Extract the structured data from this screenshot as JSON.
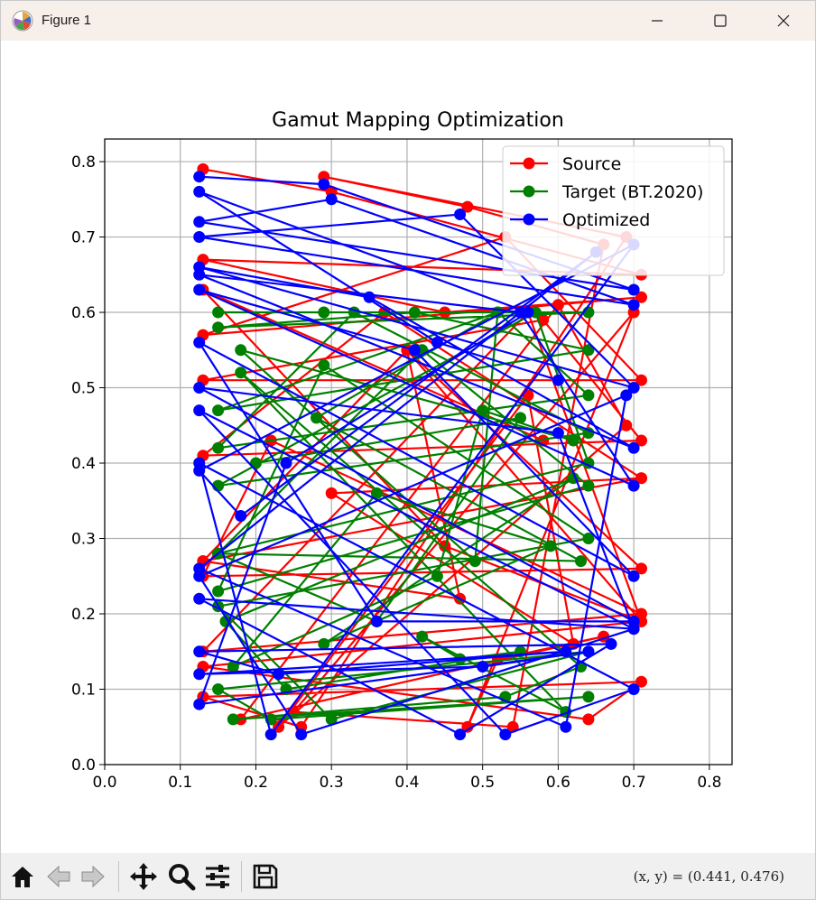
{
  "window": {
    "title": "Figure 1"
  },
  "toolbar": {
    "buttons": [
      "home-icon",
      "back-icon",
      "forward-icon",
      "pan-icon",
      "zoom-icon",
      "configure-icon",
      "save-icon"
    ],
    "coords_readout": "(x, y) = (0.441, 0.476)"
  },
  "colors": {
    "source": "#ff0000",
    "target": "#008000",
    "optimized": "#0000ff",
    "grid": "#b0b0b0",
    "titlebar": "#f7efea",
    "toolbar": "#f0f0f0"
  },
  "chart_data": {
    "type": "line",
    "title": "Gamut Mapping Optimization",
    "xlabel": "",
    "ylabel": "",
    "xlim": [
      0.0,
      0.83
    ],
    "ylim": [
      0.0,
      0.83
    ],
    "xticks": [
      "0.0",
      "0.1",
      "0.2",
      "0.3",
      "0.4",
      "0.5",
      "0.6",
      "0.7",
      "0.8"
    ],
    "yticks": [
      "0.0",
      "0.1",
      "0.2",
      "0.3",
      "0.4",
      "0.5",
      "0.6",
      "0.7",
      "0.8"
    ],
    "grid": true,
    "legend_position": "top-right",
    "series": [
      {
        "name": "Source",
        "color": "#ff0000",
        "points": [
          [
            0.13,
            0.79
          ],
          [
            0.3,
            0.76
          ],
          [
            0.71,
            0.65
          ],
          [
            0.13,
            0.67
          ],
          [
            0.45,
            0.6
          ],
          [
            0.71,
            0.62
          ],
          [
            0.13,
            0.57
          ],
          [
            0.53,
            0.7
          ],
          [
            0.71,
            0.51
          ],
          [
            0.13,
            0.51
          ],
          [
            0.58,
            0.59
          ],
          [
            0.71,
            0.43
          ],
          [
            0.13,
            0.41
          ],
          [
            0.37,
            0.6
          ],
          [
            0.71,
            0.38
          ],
          [
            0.13,
            0.27
          ],
          [
            0.4,
            0.55
          ],
          [
            0.71,
            0.26
          ],
          [
            0.13,
            0.25
          ],
          [
            0.22,
            0.43
          ],
          [
            0.71,
            0.2
          ],
          [
            0.13,
            0.15
          ],
          [
            0.56,
            0.6
          ],
          [
            0.71,
            0.19
          ],
          [
            0.13,
            0.13
          ],
          [
            0.64,
            0.06
          ],
          [
            0.71,
            0.11
          ],
          [
            0.13,
            0.09
          ],
          [
            0.26,
            0.05
          ],
          [
            0.69,
            0.7
          ],
          [
            0.29,
            0.78
          ],
          [
            0.48,
            0.74
          ],
          [
            0.66,
            0.69
          ],
          [
            0.54,
            0.05
          ],
          [
            0.25,
            0.07
          ],
          [
            0.7,
            0.6
          ],
          [
            0.48,
            0.05
          ],
          [
            0.52,
            0.14
          ],
          [
            0.66,
            0.17
          ],
          [
            0.18,
            0.06
          ],
          [
            0.6,
            0.61
          ],
          [
            0.69,
            0.45
          ],
          [
            0.23,
            0.05
          ],
          [
            0.56,
            0.49
          ],
          [
            0.62,
            0.16
          ],
          [
            0.3,
            0.36
          ],
          [
            0.71,
            0.38
          ],
          [
            0.13,
            0.27
          ],
          [
            0.47,
            0.22
          ],
          [
            0.4,
            0.55
          ],
          [
            0.71,
            0.19
          ],
          [
            0.45,
            0.29
          ],
          [
            0.13,
            0.63
          ],
          [
            0.58,
            0.43
          ]
        ]
      },
      {
        "name": "Target (BT.2020)",
        "color": "#008000",
        "points": [
          [
            0.15,
            0.6
          ],
          [
            0.29,
            0.6
          ],
          [
            0.64,
            0.6
          ],
          [
            0.15,
            0.58
          ],
          [
            0.41,
            0.6
          ],
          [
            0.64,
            0.55
          ],
          [
            0.15,
            0.47
          ],
          [
            0.52,
            0.6
          ],
          [
            0.64,
            0.49
          ],
          [
            0.15,
            0.42
          ],
          [
            0.33,
            0.6
          ],
          [
            0.64,
            0.44
          ],
          [
            0.15,
            0.37
          ],
          [
            0.57,
            0.6
          ],
          [
            0.64,
            0.4
          ],
          [
            0.15,
            0.28
          ],
          [
            0.42,
            0.55
          ],
          [
            0.64,
            0.37
          ],
          [
            0.15,
            0.23
          ],
          [
            0.29,
            0.53
          ],
          [
            0.64,
            0.3
          ],
          [
            0.15,
            0.21
          ],
          [
            0.3,
            0.06
          ],
          [
            0.64,
            0.15
          ],
          [
            0.15,
            0.1
          ],
          [
            0.22,
            0.06
          ],
          [
            0.64,
            0.09
          ],
          [
            0.17,
            0.06
          ],
          [
            0.53,
            0.09
          ],
          [
            0.63,
            0.13
          ],
          [
            0.18,
            0.52
          ],
          [
            0.61,
            0.07
          ],
          [
            0.42,
            0.17
          ],
          [
            0.47,
            0.14
          ],
          [
            0.55,
            0.15
          ],
          [
            0.24,
            0.1
          ],
          [
            0.16,
            0.19
          ],
          [
            0.62,
            0.38
          ],
          [
            0.29,
            0.16
          ],
          [
            0.59,
            0.29
          ],
          [
            0.36,
            0.36
          ],
          [
            0.17,
            0.13
          ],
          [
            0.44,
            0.25
          ],
          [
            0.5,
            0.47
          ],
          [
            0.62,
            0.43
          ],
          [
            0.18,
            0.55
          ],
          [
            0.49,
            0.27
          ],
          [
            0.52,
            0.6
          ],
          [
            0.28,
            0.46
          ],
          [
            0.63,
            0.27
          ],
          [
            0.15,
            0.28
          ],
          [
            0.36,
            0.19
          ],
          [
            0.55,
            0.46
          ],
          [
            0.2,
            0.4
          ]
        ]
      },
      {
        "name": "Optimized",
        "color": "#0000ff",
        "points": [
          [
            0.125,
            0.78
          ],
          [
            0.29,
            0.77
          ],
          [
            0.7,
            0.63
          ],
          [
            0.125,
            0.72
          ],
          [
            0.3,
            0.75
          ],
          [
            0.7,
            0.61
          ],
          [
            0.125,
            0.7
          ],
          [
            0.47,
            0.73
          ],
          [
            0.7,
            0.5
          ],
          [
            0.125,
            0.66
          ],
          [
            0.35,
            0.62
          ],
          [
            0.7,
            0.42
          ],
          [
            0.125,
            0.65
          ],
          [
            0.55,
            0.6
          ],
          [
            0.7,
            0.37
          ],
          [
            0.125,
            0.63
          ],
          [
            0.41,
            0.55
          ],
          [
            0.7,
            0.25
          ],
          [
            0.125,
            0.56
          ],
          [
            0.36,
            0.19
          ],
          [
            0.7,
            0.19
          ],
          [
            0.125,
            0.5
          ],
          [
            0.6,
            0.44
          ],
          [
            0.7,
            0.18
          ],
          [
            0.125,
            0.47
          ],
          [
            0.53,
            0.04
          ],
          [
            0.7,
            0.1
          ],
          [
            0.125,
            0.4
          ],
          [
            0.22,
            0.04
          ],
          [
            0.7,
            0.69
          ],
          [
            0.125,
            0.39
          ],
          [
            0.18,
            0.33
          ],
          [
            0.65,
            0.68
          ],
          [
            0.125,
            0.26
          ],
          [
            0.61,
            0.05
          ],
          [
            0.69,
            0.49
          ],
          [
            0.125,
            0.25
          ],
          [
            0.26,
            0.04
          ],
          [
            0.7,
            0.18
          ],
          [
            0.125,
            0.22
          ],
          [
            0.47,
            0.04
          ],
          [
            0.67,
            0.16
          ],
          [
            0.125,
            0.15
          ],
          [
            0.23,
            0.12
          ],
          [
            0.61,
            0.15
          ],
          [
            0.125,
            0.12
          ],
          [
            0.5,
            0.13
          ],
          [
            0.64,
            0.15
          ],
          [
            0.125,
            0.08
          ],
          [
            0.24,
            0.4
          ],
          [
            0.56,
            0.6
          ],
          [
            0.125,
            0.76
          ],
          [
            0.44,
            0.56
          ],
          [
            0.6,
            0.51
          ]
        ]
      }
    ]
  }
}
